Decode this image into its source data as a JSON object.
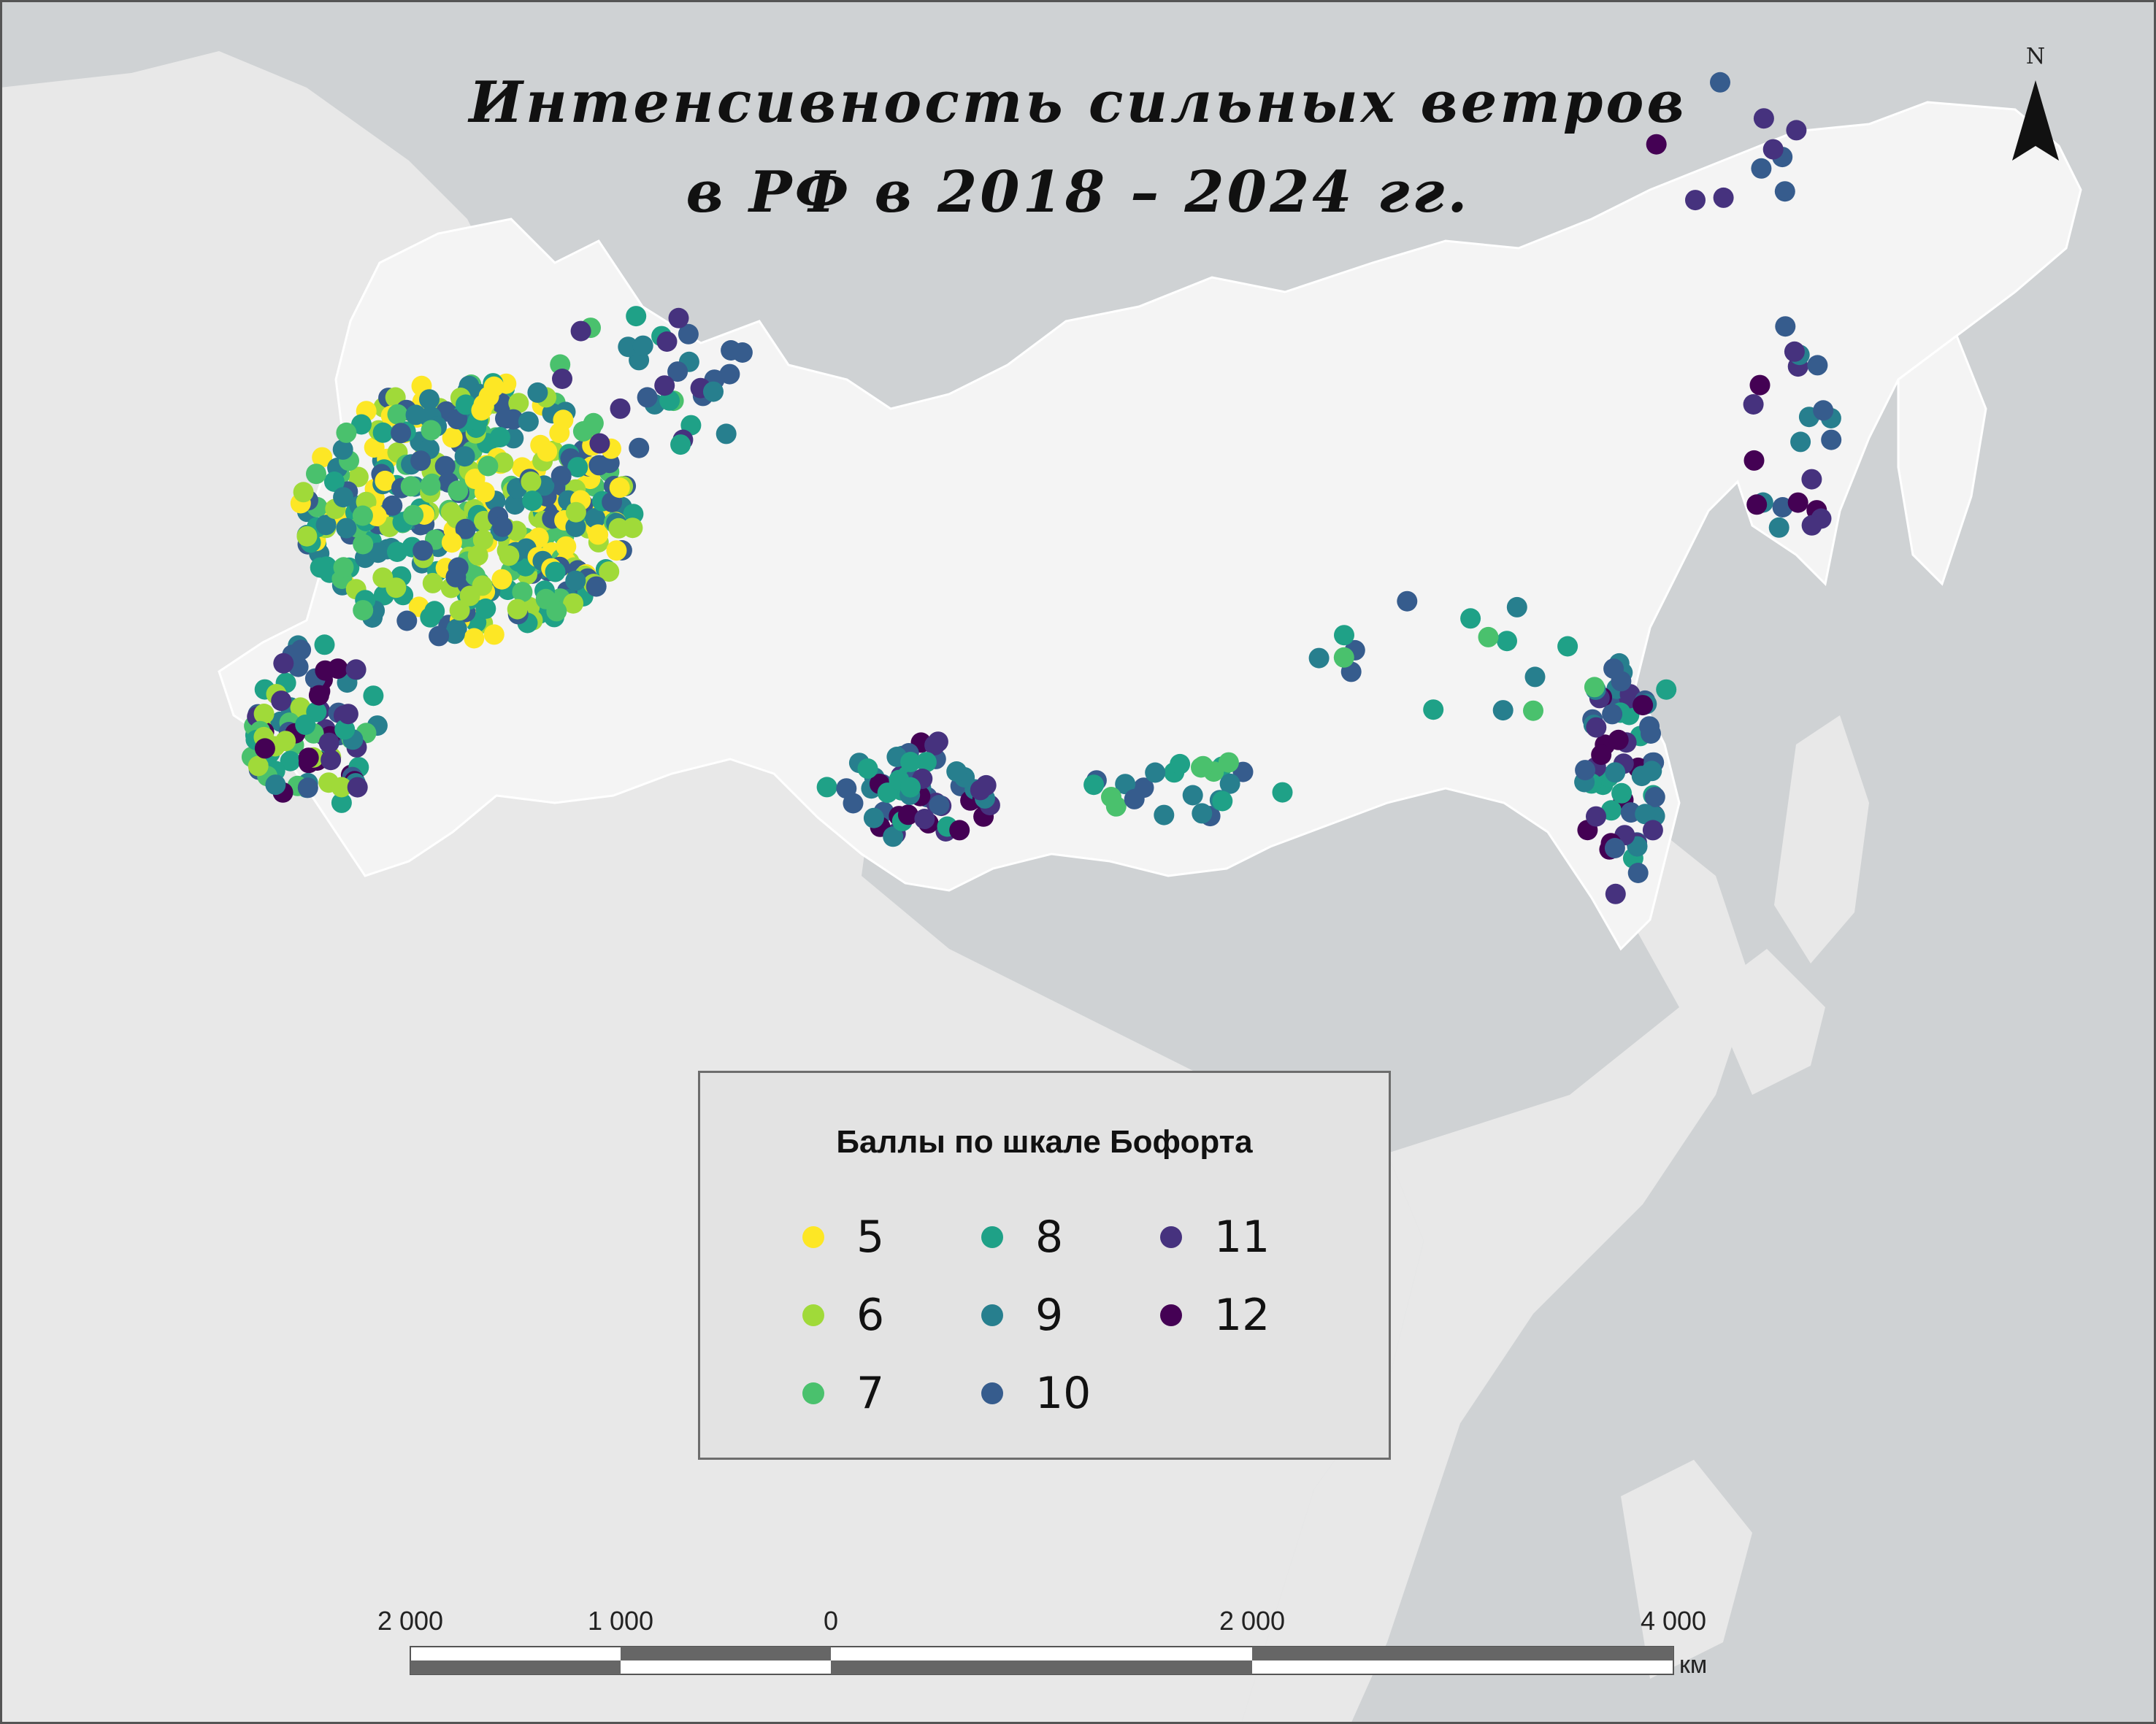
{
  "map": {
    "title_line1": "Интенсивность сильных ветров",
    "title_line2": "в РФ в 2018 – 2024 гг.",
    "north_label": "N",
    "colors": {
      "water": "#cfd2d4",
      "land": "#e8e8e8",
      "russia": "#f4f4f4",
      "border": "#ffffff"
    }
  },
  "legend": {
    "title": "Баллы по шкале Бофорта",
    "items": [
      {
        "label": "5",
        "color": "#fde725"
      },
      {
        "label": "6",
        "color": "#a0da39"
      },
      {
        "label": "7",
        "color": "#4ac16d"
      },
      {
        "label": "8",
        "color": "#1fa187"
      },
      {
        "label": "9",
        "color": "#277f8e"
      },
      {
        "label": "10",
        "color": "#365c8d"
      },
      {
        "label": "11",
        "color": "#46327e"
      },
      {
        "label": "12",
        "color": "#440154"
      }
    ]
  },
  "scale_bar": {
    "labels": [
      "2 000",
      "1 000",
      "0",
      "2 000",
      "4 000"
    ],
    "unit": "км"
  }
}
